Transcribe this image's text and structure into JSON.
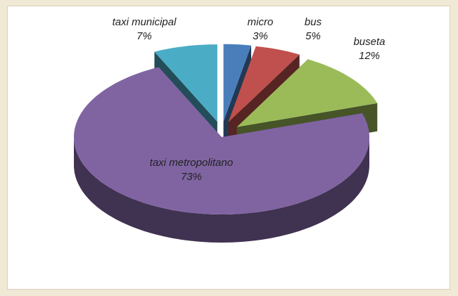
{
  "chart_data": {
    "type": "pie",
    "categories": [
      "micro",
      "bus",
      "buseta",
      "taxi metropolitano",
      "taxi municipal"
    ],
    "values": [
      3,
      5,
      12,
      73,
      7
    ],
    "value_labels": [
      "3%",
      "5%",
      "12%",
      "73%",
      "7%"
    ],
    "colors": [
      "#4a7ebb",
      "#c0504d",
      "#9bbb59",
      "#8064a2",
      "#4bacc6"
    ]
  }
}
